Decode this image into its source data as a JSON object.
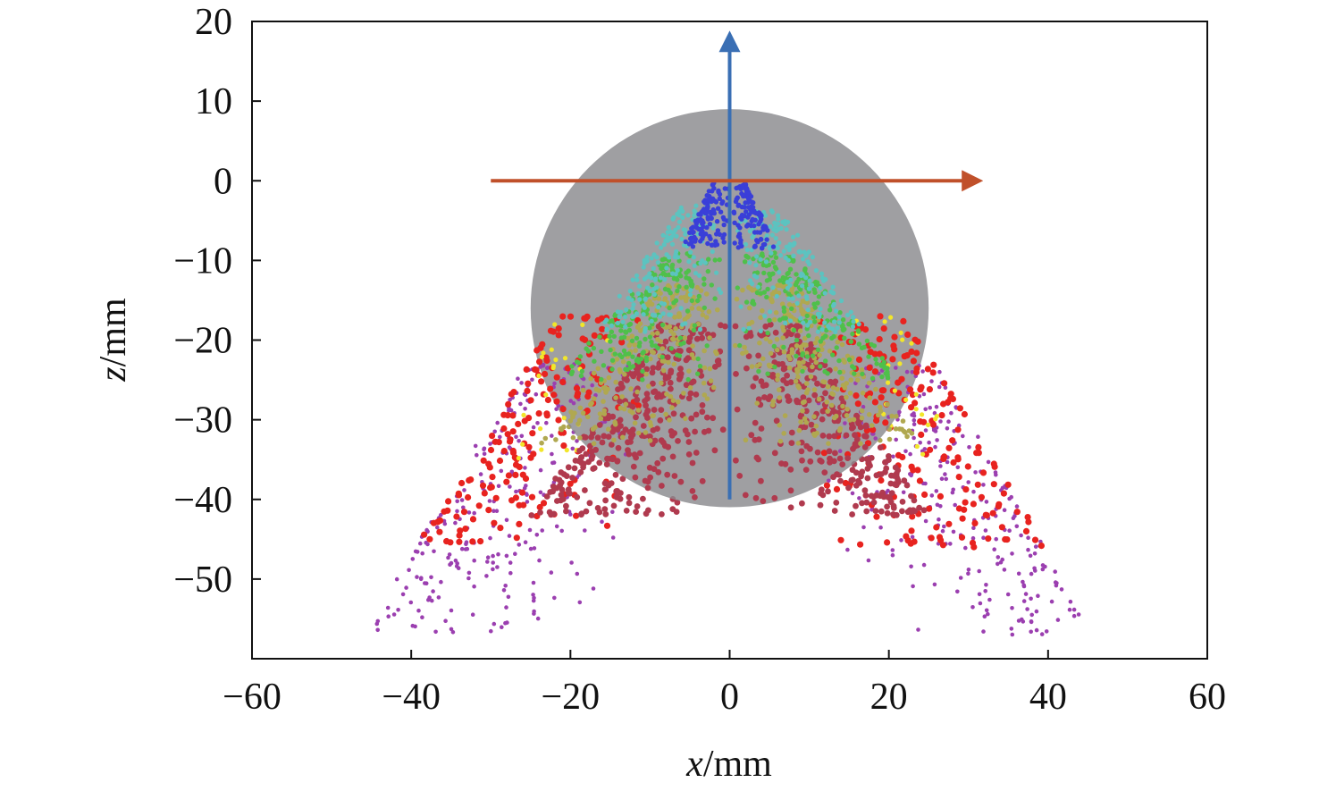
{
  "chart_data": {
    "type": "scatter",
    "xlabel_var": "x",
    "xlabel_unit": "/mm",
    "ylabel_var": "z",
    "ylabel_unit": "/mm",
    "xlim": [
      -60,
      60
    ],
    "ylim": [
      -60,
      20
    ],
    "xticks": [
      -60,
      -40,
      -20,
      0,
      20,
      40,
      60
    ],
    "yticks": [
      20,
      10,
      0,
      -10,
      -20,
      -30,
      -40,
      -50
    ],
    "xtick_labels": [
      "−60",
      "−40",
      "−20",
      "0",
      "20",
      "40",
      "60"
    ],
    "ytick_labels": [
      "20",
      "10",
      "0",
      "−10",
      "−20",
      "−30",
      "−40",
      "−50"
    ],
    "grid": false,
    "legend": "none",
    "sphere": {
      "center": [
        0,
        -16
      ],
      "radius": 25,
      "color": "#8a8a8e"
    },
    "arrows": [
      {
        "from": [
          0,
          -40
        ],
        "to": [
          0,
          17.5
        ],
        "color": "#3a6fb4"
      },
      {
        "from": [
          -30,
          0
        ],
        "to": [
          30.5,
          0
        ],
        "color": "#c0502a"
      }
    ],
    "point_groups": [
      {
        "color": "#9b3fb0",
        "radius": 2.3,
        "count": 520,
        "z_range": [
          -57,
          -23
        ],
        "r_range": [
          15,
          46
        ]
      },
      {
        "color": "#e8231f",
        "radius": 3.6,
        "count": 360,
        "z_range": [
          -46,
          -17
        ],
        "r_range": [
          12,
          40
        ]
      },
      {
        "color": "#f2e62a",
        "radius": 2.6,
        "count": 45,
        "z_range": [
          -35,
          -16
        ],
        "r_range": [
          18,
          28
        ]
      },
      {
        "color": "#b03a4e",
        "radius": 3.4,
        "count": 650,
        "z_range": [
          -42,
          -18
        ],
        "r_range": [
          0,
          25
        ]
      },
      {
        "color": "#b0a850",
        "radius": 2.8,
        "count": 450,
        "z_range": [
          -33,
          -13
        ],
        "r_range": [
          0,
          24
        ]
      },
      {
        "color": "#4fc04a",
        "radius": 2.7,
        "count": 380,
        "z_range": [
          -25,
          -9
        ],
        "r_range": [
          0,
          22
        ]
      },
      {
        "color": "#5cc3c0",
        "radius": 2.6,
        "count": 320,
        "z_range": [
          -19,
          -3
        ],
        "r_range": [
          0,
          17
        ]
      },
      {
        "color": "#3a3fd8",
        "radius": 2.7,
        "count": 220,
        "z_range": [
          -8.5,
          -0.2
        ],
        "r_range": [
          0,
          6
        ]
      }
    ]
  }
}
